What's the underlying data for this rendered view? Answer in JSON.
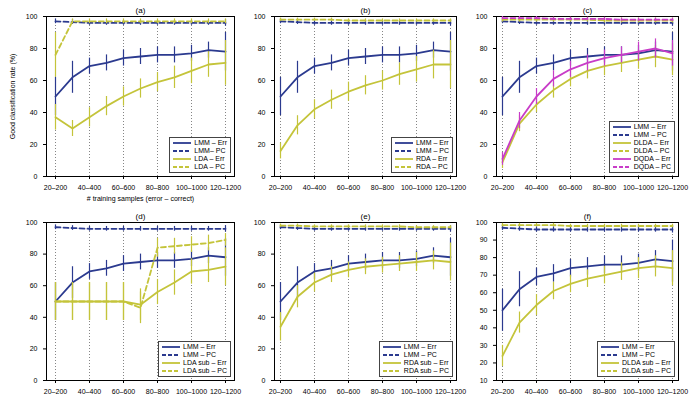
{
  "chart_data": [
    {
      "type": "line",
      "title": "(a)",
      "xlabel": "# training samples (error – correct)",
      "ylabel": "Good classification rate (%)",
      "categories": [
        "20–200",
        null,
        "40–400",
        null,
        "60–600",
        null,
        "80–800",
        null,
        "100–1000",
        null,
        "120–1200"
      ],
      "ylim": [
        0,
        100
      ],
      "yticks": [
        0,
        20,
        40,
        60,
        80,
        100
      ],
      "grid": true,
      "legend": "bottom-right",
      "series": [
        {
          "name": "LMM – Err",
          "color": "#2b3a8f",
          "line_style": "solid",
          "values": [
            50,
            62,
            69,
            71,
            74,
            75,
            76,
            76,
            77,
            79,
            78
          ],
          "errors": [
            12,
            10,
            5,
            5,
            5,
            5,
            5,
            5,
            5,
            5,
            12
          ]
        },
        {
          "name": "LMM– PC",
          "color": "#2b3a8f",
          "line_style": "dashed",
          "values": [
            97,
            96.5,
            96,
            96,
            96,
            96,
            96,
            96,
            96,
            96,
            96
          ],
          "errors": [
            1.5,
            1.5,
            1.5,
            1.5,
            1.5,
            1.5,
            1.5,
            1.5,
            1.5,
            1.5,
            2
          ]
        },
        {
          "name": "LDA – Err",
          "color": "#c4c43a",
          "line_style": "solid",
          "values": [
            37,
            30,
            37,
            44,
            50,
            55,
            59,
            62,
            66,
            70,
            71
          ],
          "errors": [
            8,
            5,
            6,
            6,
            6,
            6,
            6,
            7,
            8,
            8,
            14
          ]
        },
        {
          "name": "LDA – PC",
          "color": "#c4c43a",
          "line_style": "dashed",
          "values": [
            76,
            97,
            97,
            97,
            97,
            97,
            97,
            97,
            97,
            97,
            97
          ],
          "errors": [
            14,
            1.5,
            1.5,
            1.5,
            1.5,
            1.5,
            1.5,
            1.5,
            1.5,
            1.5,
            1.5
          ]
        }
      ]
    },
    {
      "type": "line",
      "title": "(b)",
      "categories": [
        "20–200",
        null,
        "40–400",
        null,
        "60–600",
        null,
        "80–800",
        null,
        "100–1000",
        null,
        "120–1200"
      ],
      "ylim": [
        0,
        100
      ],
      "yticks": [
        0,
        20,
        40,
        60,
        80,
        100
      ],
      "grid": true,
      "legend": "bottom-right",
      "series": [
        {
          "name": "LMM – Err",
          "color": "#2b3a8f",
          "line_style": "solid",
          "values": [
            50,
            62,
            69,
            71,
            74,
            75,
            76,
            76,
            77,
            79,
            78
          ],
          "errors": [
            12,
            10,
            5,
            5,
            5,
            5,
            5,
            5,
            5,
            5,
            12
          ]
        },
        {
          "name": "LMM – PC",
          "color": "#2b3a8f",
          "line_style": "dashed",
          "values": [
            97,
            96.5,
            96,
            96,
            96,
            96,
            96,
            96,
            96,
            96,
            96
          ],
          "errors": [
            1.5,
            1.5,
            1.5,
            1.5,
            1.5,
            1.5,
            1.5,
            1.5,
            1.5,
            1.5,
            2
          ]
        },
        {
          "name": "RDA – Err",
          "color": "#c4c43a",
          "line_style": "solid",
          "values": [
            16,
            32,
            42,
            48,
            53,
            57,
            60,
            64,
            67,
            70,
            70
          ],
          "errors": [
            5,
            6,
            6,
            6,
            6,
            6,
            6,
            7,
            8,
            9,
            15
          ]
        },
        {
          "name": "RDA – PC",
          "color": "#c4c43a",
          "line_style": "dashed",
          "values": [
            98,
            98,
            98,
            98,
            97.5,
            97.5,
            97.5,
            97.5,
            97.5,
            97.5,
            97.5
          ],
          "errors": [
            1,
            1,
            1,
            1,
            1,
            1,
            1,
            1,
            1,
            1,
            1
          ]
        }
      ]
    },
    {
      "type": "line",
      "title": "(c)",
      "categories": [
        "20–200",
        null,
        "40–400",
        null,
        "60–600",
        null,
        "80–800",
        null,
        "100–1000",
        null,
        "120–1200"
      ],
      "ylim": [
        0,
        100
      ],
      "yticks": [
        0,
        20,
        40,
        60,
        80,
        100
      ],
      "grid": true,
      "legend": "bottom-right",
      "series": [
        {
          "name": "LMM – Err",
          "color": "#2b3a8f",
          "line_style": "solid",
          "values": [
            50,
            62,
            69,
            71,
            74,
            75,
            76,
            76,
            77,
            79,
            78
          ],
          "errors": [
            12,
            10,
            5,
            5,
            5,
            5,
            5,
            5,
            5,
            5,
            12
          ]
        },
        {
          "name": "LMM – PC",
          "color": "#2b3a8f",
          "line_style": "dashed",
          "values": [
            97,
            96.5,
            96,
            96,
            96,
            96,
            96,
            96,
            96,
            96,
            96
          ],
          "errors": [
            1.5,
            1.5,
            1.5,
            1.5,
            1.5,
            1.5,
            1.5,
            1.5,
            1.5,
            1.5,
            2
          ]
        },
        {
          "name": "DLDA – Err",
          "color": "#c4c43a",
          "line_style": "solid",
          "values": [
            9,
            33,
            45,
            54,
            61,
            66,
            69,
            71,
            73,
            75,
            73
          ],
          "errors": [
            4,
            5,
            5,
            5,
            5,
            5,
            6,
            6,
            6,
            7,
            10
          ]
        },
        {
          "name": "DLDA – PC",
          "color": "#c4c43a",
          "line_style": "dashed",
          "values": [
            98,
            98,
            98,
            98,
            98,
            98,
            97.5,
            97.5,
            97.5,
            97.5,
            97.5
          ],
          "errors": [
            1.5,
            1.5,
            1.5,
            1.5,
            1.5,
            1.5,
            1.5,
            1.5,
            1.5,
            1.5,
            1.5
          ]
        },
        {
          "name": "DQDA – Err",
          "color": "#c83cc8",
          "line_style": "solid",
          "values": [
            11,
            35,
            50,
            61,
            67,
            71,
            74,
            76,
            78,
            80,
            77
          ],
          "errors": [
            4,
            5,
            5,
            5,
            5,
            5,
            5,
            5,
            6,
            6,
            8
          ]
        },
        {
          "name": "DQDA – PC",
          "color": "#c83cc8",
          "line_style": "dashed",
          "values": [
            99,
            99,
            99,
            98.5,
            98.5,
            98.5,
            98.5,
            98,
            98,
            98,
            98
          ],
          "errors": [
            1,
            1,
            1,
            1,
            1,
            1,
            1,
            1,
            1,
            1,
            1
          ]
        }
      ]
    },
    {
      "type": "line",
      "title": "(d)",
      "categories": [
        "20–200",
        null,
        "40–400",
        null,
        "60–600",
        null,
        "80–800",
        null,
        "100–1000",
        null,
        "120–1200"
      ],
      "ylim": [
        0,
        100
      ],
      "yticks": [
        0,
        20,
        40,
        60,
        80,
        100
      ],
      "grid": true,
      "legend": "bottom-right",
      "series": [
        {
          "name": "LMM – Err",
          "color": "#2b3a8f",
          "line_style": "solid",
          "values": [
            50,
            62,
            69,
            71,
            74,
            75,
            76,
            76,
            77,
            79,
            78
          ],
          "errors": [
            12,
            10,
            5,
            5,
            5,
            5,
            5,
            5,
            5,
            5,
            12
          ]
        },
        {
          "name": "LMM – PC",
          "color": "#2b3a8f",
          "line_style": "dashed",
          "values": [
            97,
            96.5,
            96,
            96,
            96,
            96,
            96,
            96,
            96,
            96,
            96
          ],
          "errors": [
            1.5,
            1.5,
            1.5,
            1.5,
            1.5,
            1.5,
            1.5,
            1.5,
            1.5,
            1.5,
            2
          ]
        },
        {
          "name": "LDA sub – Err",
          "color": "#c4c43a",
          "line_style": "solid",
          "values": [
            50,
            50,
            50,
            50,
            50,
            48,
            56,
            62,
            69,
            70,
            72
          ],
          "errors": [
            12,
            12,
            12,
            12,
            12,
            10,
            8,
            8,
            8,
            8,
            12
          ]
        },
        {
          "name": "LDA sub – PC",
          "color": "#c4c43a",
          "line_style": "dashed",
          "values": [
            50,
            50,
            50,
            50,
            50,
            46,
            84,
            85,
            86,
            87,
            89
          ],
          "errors": [
            12,
            12,
            12,
            12,
            12,
            10,
            6,
            5,
            5,
            5,
            4
          ]
        }
      ]
    },
    {
      "type": "line",
      "title": "(e)",
      "categories": [
        "20–200",
        null,
        "40–400",
        null,
        "60–600",
        null,
        "80–800",
        null,
        "100–1000",
        null,
        "120–1200"
      ],
      "ylim": [
        0,
        100
      ],
      "yticks": [
        0,
        20,
        40,
        60,
        80,
        100
      ],
      "grid": true,
      "legend": "bottom-right",
      "series": [
        {
          "name": "LMM – Err",
          "color": "#2b3a8f",
          "line_style": "solid",
          "values": [
            50,
            62,
            69,
            71,
            74,
            75,
            76,
            76,
            77,
            79,
            78
          ],
          "errors": [
            12,
            10,
            5,
            5,
            5,
            5,
            5,
            5,
            5,
            5,
            12
          ]
        },
        {
          "name": "LMM – PC",
          "color": "#2b3a8f",
          "line_style": "dashed",
          "values": [
            97,
            96.5,
            96,
            96,
            96,
            96,
            96,
            96,
            96,
            96,
            96
          ],
          "errors": [
            1.5,
            1.5,
            1.5,
            1.5,
            1.5,
            1.5,
            1.5,
            1.5,
            1.5,
            1.5,
            2
          ]
        },
        {
          "name": "RDA sub – Err",
          "color": "#c4c43a",
          "line_style": "solid",
          "values": [
            34,
            53,
            62,
            67,
            70,
            72,
            73,
            74,
            75,
            76,
            75
          ],
          "errors": [
            9,
            7,
            6,
            5,
            5,
            5,
            5,
            5,
            6,
            6,
            12
          ]
        },
        {
          "name": "RDA sub – PC",
          "color": "#c4c43a",
          "line_style": "dashed",
          "values": [
            98,
            98,
            97.5,
            97.5,
            97.5,
            97.5,
            97.5,
            97.5,
            97,
            97,
            97
          ],
          "errors": [
            1,
            1,
            1,
            1,
            1,
            1,
            1,
            1,
            1,
            1,
            1
          ]
        }
      ]
    },
    {
      "type": "line",
      "title": "(f)",
      "categories": [
        "20–200",
        null,
        "40–400",
        null,
        "60–600",
        null,
        "80–800",
        null,
        "100–1000",
        null,
        "120–1200"
      ],
      "ylim": [
        10,
        100
      ],
      "yticks": [
        10,
        20,
        30,
        40,
        50,
        60,
        70,
        80,
        90,
        100
      ],
      "grid": true,
      "legend": "bottom-right",
      "series": [
        {
          "name": "LMM – Err",
          "color": "#2b3a8f",
          "line_style": "solid",
          "values": [
            50,
            62,
            69,
            71,
            74,
            75,
            76,
            76,
            77,
            79,
            78
          ],
          "errors": [
            12,
            10,
            5,
            5,
            5,
            5,
            5,
            5,
            5,
            5,
            12
          ]
        },
        {
          "name": "LMM – PC",
          "color": "#2b3a8f",
          "line_style": "dashed",
          "values": [
            97,
            96.5,
            96,
            96,
            96,
            96,
            96,
            96,
            96,
            96,
            96
          ],
          "errors": [
            1.5,
            1.5,
            1.5,
            1.5,
            1.5,
            1.5,
            1.5,
            1.5,
            1.5,
            1.5,
            2
          ]
        },
        {
          "name": "DLDA sub – Err",
          "color": "#c4c43a",
          "line_style": "solid",
          "values": [
            24,
            43,
            53,
            61,
            65,
            68,
            70,
            72,
            74,
            75,
            74
          ],
          "errors": [
            6,
            6,
            6,
            5,
            5,
            5,
            5,
            5,
            6,
            6,
            10
          ]
        },
        {
          "name": "DLDA sub – PC",
          "color": "#c4c43a",
          "line_style": "dashed",
          "values": [
            98.5,
            98.5,
            98.5,
            98.5,
            98,
            98,
            98,
            98,
            98,
            98,
            98
          ],
          "errors": [
            1,
            1,
            1,
            1,
            1,
            1,
            1,
            1,
            1,
            1,
            1
          ]
        }
      ]
    }
  ]
}
